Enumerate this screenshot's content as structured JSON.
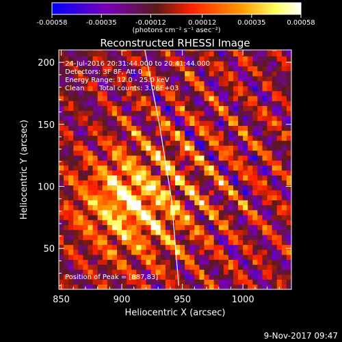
{
  "chart_data": {
    "type": "heatmap",
    "title": "Reconstructed RHESSI Image",
    "xlabel": "Heliocentric X (arcsec)",
    "ylabel": "Heliocentric Y (arcsec)",
    "xlim": [
      848,
      1040
    ],
    "ylim": [
      17,
      210
    ],
    "x_ticks": [
      850,
      900,
      950,
      1000
    ],
    "y_ticks": [
      50,
      100,
      150,
      200
    ],
    "colorbar": {
      "min": -0.00058,
      "max": 0.00058,
      "tick_values": [
        -0.00058,
        -0.00035,
        -0.00012,
        0.00012,
        0.00035,
        0.00058
      ],
      "tick_labels": [
        "-0.00058",
        "-0.00035",
        "-0.00012",
        "0.00012",
        "0.00035",
        "0.00058"
      ],
      "units_label": "(photons cm⁻² s⁻¹ asec⁻²)",
      "colors": [
        "#0000ff",
        "#7a00b8",
        "#5a1a1a",
        "#ff2000",
        "#ff9a00",
        "#ffff60",
        "#ffffff"
      ]
    },
    "annotations": {
      "time_range": "24-Jul-2016 20:31:44.000 to 20:41:44.000",
      "detectors": "Detectors: 3F 8F, Att 0",
      "energy_range": "Energy Range: 12.0 - 25.0 keV",
      "algorithm": "Clean",
      "total_counts": "Total counts: 3.06E+03",
      "peak_text": "Position of Peak = [887,83]"
    },
    "peak_position": [
      887,
      83
    ],
    "limb_curve": {
      "x": [
        919,
        931,
        941,
        947
      ],
      "y": [
        210,
        150,
        90,
        20
      ]
    },
    "map_grid_arcsec": 4,
    "emission_center": [
      905,
      85
    ],
    "emission_extent_arcsec": [
      45,
      40
    ]
  },
  "footer": {
    "date": "9-Nov-2017 09:47"
  }
}
